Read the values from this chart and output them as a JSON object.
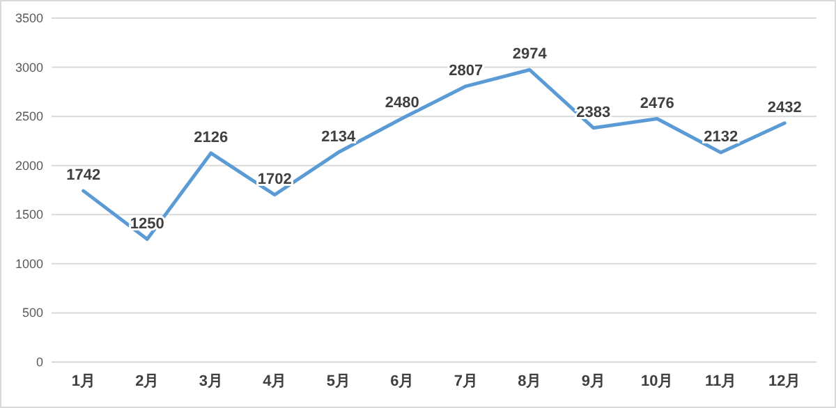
{
  "chart_data": {
    "type": "line",
    "categories": [
      "1月",
      "2月",
      "3月",
      "4月",
      "5月",
      "6月",
      "7月",
      "8月",
      "9月",
      "10月",
      "11月",
      "12月"
    ],
    "series": [
      {
        "color": "#5b9bd5",
        "values": [
          1742,
          1250,
          2126,
          1702,
          2134,
          2480,
          2807,
          2974,
          2383,
          2476,
          2132,
          2432
        ]
      }
    ],
    "ylim": [
      0,
      3500
    ],
    "yticks": [
      0,
      500,
      1000,
      1500,
      2000,
      2500,
      3000,
      3500
    ],
    "grid": "y",
    "data_labels": true
  }
}
